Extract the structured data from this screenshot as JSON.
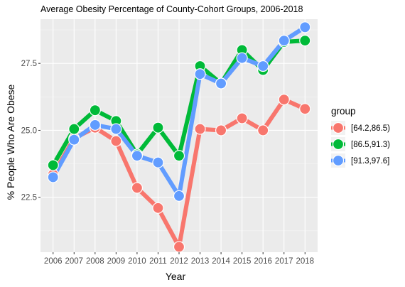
{
  "chart_data": {
    "type": "line",
    "title": "Average Obesity Percentage of County-Cohort Groups, 2006-2018",
    "xlabel": "Year",
    "ylabel": "% People Who Are Obese",
    "x": [
      2006,
      2007,
      2008,
      2009,
      2010,
      2011,
      2012,
      2013,
      2014,
      2015,
      2016,
      2017,
      2018
    ],
    "xtick_labels": [
      "2006",
      "2007",
      "2008",
      "2009",
      "2010",
      "2011",
      "2012",
      "2013",
      "2014",
      "2015",
      "2016",
      "2017",
      "2018"
    ],
    "ylim": [
      20.45,
      29.15
    ],
    "yticks": [
      22.5,
      25.0,
      27.5
    ],
    "ytick_labels": [
      "22.5",
      "25.0",
      "27.5"
    ],
    "grid": true,
    "legend": {
      "title": "group",
      "position": "right"
    },
    "series": [
      {
        "name": "[64.2,86.5)",
        "color": "#F8766D",
        "values": [
          23.35,
          24.7,
          25.1,
          24.6,
          22.85,
          22.1,
          20.65,
          25.05,
          25.0,
          25.45,
          25.0,
          26.15,
          25.8
        ]
      },
      {
        "name": "[86.5,91.3)",
        "color": "#00BA38",
        "values": [
          23.7,
          25.05,
          25.75,
          25.35,
          24.1,
          25.1,
          24.05,
          27.4,
          26.75,
          28.0,
          27.25,
          28.3,
          28.35
        ]
      },
      {
        "name": "[91.3,97.6]",
        "color": "#619CFF",
        "values": [
          23.25,
          24.65,
          25.2,
          25.05,
          24.05,
          23.8,
          22.55,
          27.1,
          26.75,
          27.7,
          27.4,
          28.35,
          28.85
        ]
      }
    ]
  }
}
